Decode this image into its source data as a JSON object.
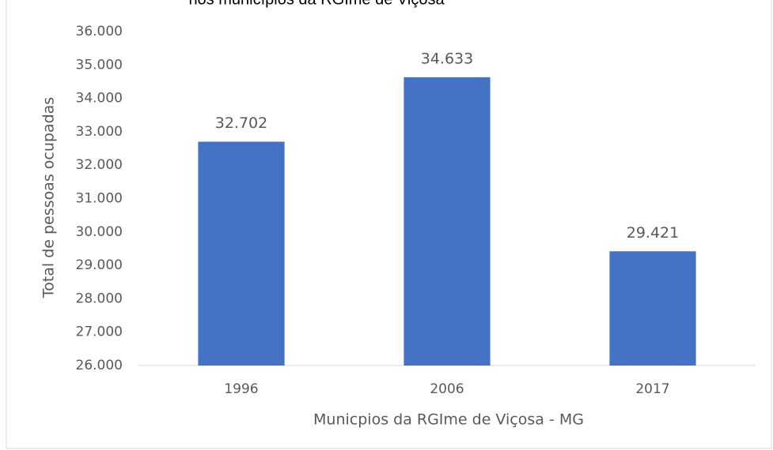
{
  "chart_data": {
    "type": "bar",
    "title": "nos municípios da RGIme de Viçosa",
    "x_label": "Municpios  da RGIme de Viçosa - MG",
    "y_label": "Total de pessoas ocupadas",
    "categories": [
      "1996",
      "2006",
      "2017"
    ],
    "values": [
      32702,
      34633,
      29421
    ],
    "value_labels": [
      "32.702",
      "34.633",
      "29.421"
    ],
    "color": "#4472c4",
    "ylim": [
      26000,
      36000
    ],
    "yticks": [
      {
        "value": 26000,
        "label": "26.000"
      },
      {
        "value": 27000,
        "label": "27.000"
      },
      {
        "value": 28000,
        "label": "28.000"
      },
      {
        "value": 29000,
        "label": "29.000"
      },
      {
        "value": 30000,
        "label": "30.000"
      },
      {
        "value": 31000,
        "label": "31.000"
      },
      {
        "value": 32000,
        "label": "32.000"
      },
      {
        "value": 33000,
        "label": "33.000"
      },
      {
        "value": 34000,
        "label": "34.000"
      },
      {
        "value": 35000,
        "label": "35.000"
      },
      {
        "value": 36000,
        "label": "36.000"
      }
    ],
    "grid": false
  }
}
